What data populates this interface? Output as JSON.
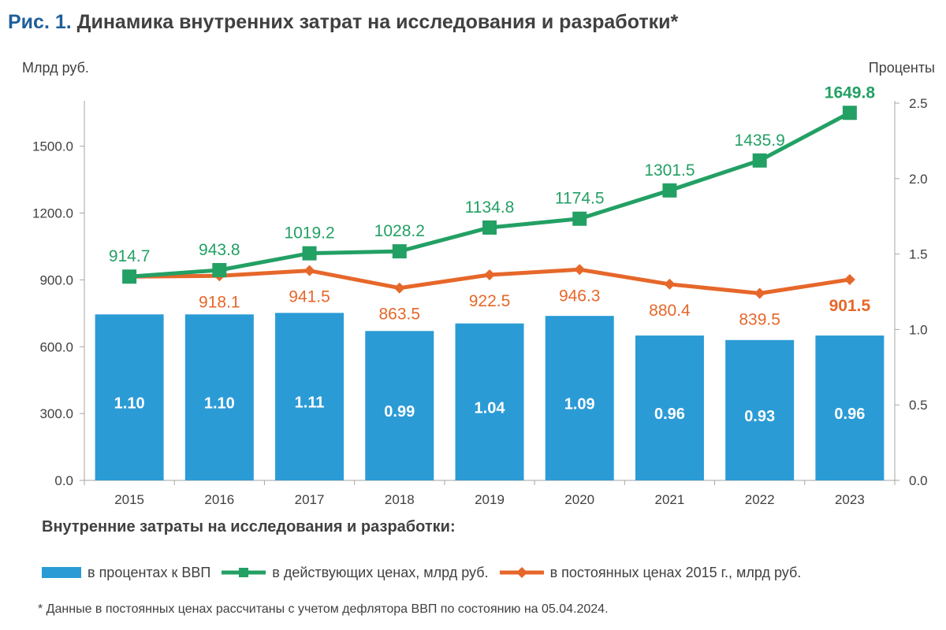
{
  "figure": {
    "number": "Рис. 1.",
    "title": "Динамика внутренних затрат на исследования и разработки*"
  },
  "legend_title": "Внутренние затраты на исследования и разработки:",
  "footnote": "* Данные в постоянных ценах рассчитаны с учетом дефлятора ВВП по состоянию на 05.04.2024.",
  "colors": {
    "bars": "#2b9bd6",
    "current": "#23a064",
    "constant": "#e6672a",
    "axis": "#a6a6a6",
    "text": "#404040"
  },
  "chart_data": {
    "type": "bar",
    "categories": [
      "2015",
      "2016",
      "2017",
      "2018",
      "2019",
      "2020",
      "2021",
      "2022",
      "2023"
    ],
    "series": [
      {
        "name": "в процентах к ВВП",
        "type": "bar",
        "axis": "right",
        "values": [
          1.1,
          1.1,
          1.11,
          0.99,
          1.04,
          1.09,
          0.96,
          0.93,
          0.96
        ],
        "labels": [
          "1.10",
          "1.10",
          "1.11",
          "0.99",
          "1.04",
          "1.09",
          "0.96",
          "0.93",
          "0.96"
        ]
      },
      {
        "name": "в действующих ценах, млрд руб.",
        "type": "line",
        "marker": "square",
        "axis": "left",
        "values": [
          914.7,
          943.8,
          1019.2,
          1028.2,
          1134.8,
          1174.5,
          1301.5,
          1435.9,
          1649.8
        ],
        "labels": [
          "914.7",
          "943.8",
          "1019.2",
          "1028.2",
          "1134.8",
          "1174.5",
          "1301.5",
          "1435.9",
          "1649.8"
        ]
      },
      {
        "name": "в постоянных ценах 2015 г., млрд руб.",
        "type": "line",
        "marker": "diamond",
        "axis": "left",
        "values": [
          914.7,
          918.1,
          941.5,
          863.5,
          922.5,
          946.3,
          880.4,
          839.5,
          901.5
        ],
        "labels": [
          "",
          "918.1",
          "941.5",
          "863.5",
          "922.5",
          "946.3",
          "880.4",
          "839.5",
          "901.5"
        ]
      }
    ],
    "ylabel_left": "Млрд руб.",
    "ylabel_right": "Проценты",
    "ylim_left": [
      0,
      1650
    ],
    "ylim_right": [
      0,
      2.5
    ],
    "yticks_left": [
      "0.0",
      "300.0",
      "600.0",
      "900.0",
      "1200.0",
      "1500.0"
    ],
    "yticks_right": [
      "0.0",
      "0.5",
      "1.0",
      "1.5",
      "2.0",
      "2.5"
    ],
    "grid": false,
    "legend_position": "bottom"
  }
}
